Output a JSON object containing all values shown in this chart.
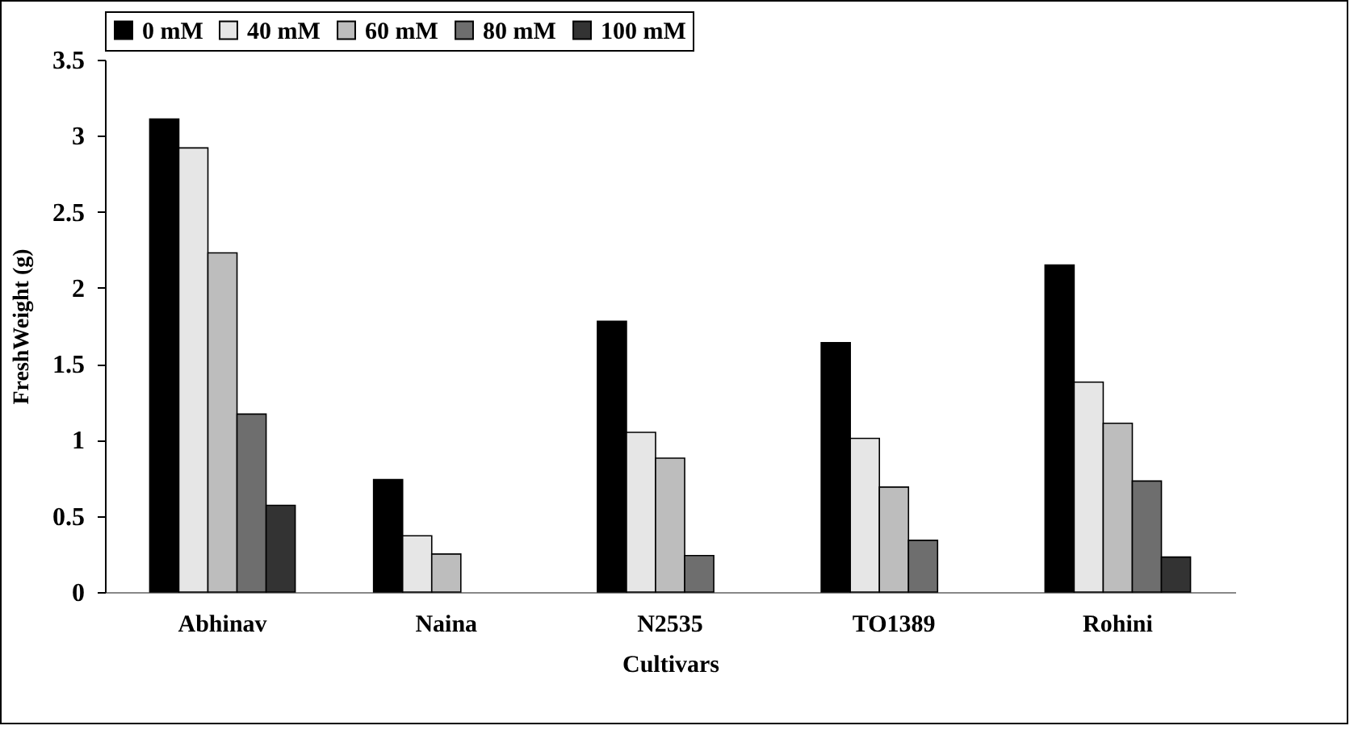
{
  "chart_data": {
    "type": "bar",
    "xlabel": "Cultivars",
    "ylabel": "FreshWeight (g)",
    "categories": [
      "Abhinav",
      "Naina",
      "N2535",
      "TO1389",
      "Rohini"
    ],
    "series": [
      {
        "name": "0 mM",
        "color": "#000000",
        "values": [
          3.11,
          0.74,
          1.78,
          1.64,
          2.15
        ]
      },
      {
        "name": "40 mM",
        "color": "#e6e6e6",
        "values": [
          2.92,
          0.37,
          1.05,
          1.01,
          1.38
        ]
      },
      {
        "name": "60 mM",
        "color": "#bdbdbd",
        "values": [
          2.23,
          0.25,
          0.88,
          0.69,
          1.11
        ]
      },
      {
        "name": "80 mM",
        "color": "#6e6e6e",
        "values": [
          1.17,
          null,
          0.24,
          0.34,
          0.73
        ]
      },
      {
        "name": "100 mM",
        "color": "#333333",
        "values": [
          0.57,
          null,
          null,
          null,
          0.23
        ]
      }
    ],
    "ylim": [
      0,
      3.5
    ],
    "yticks": [
      0,
      0.5,
      1,
      1.5,
      2,
      2.5,
      3,
      3.5
    ],
    "grid": false,
    "legend": "top"
  }
}
